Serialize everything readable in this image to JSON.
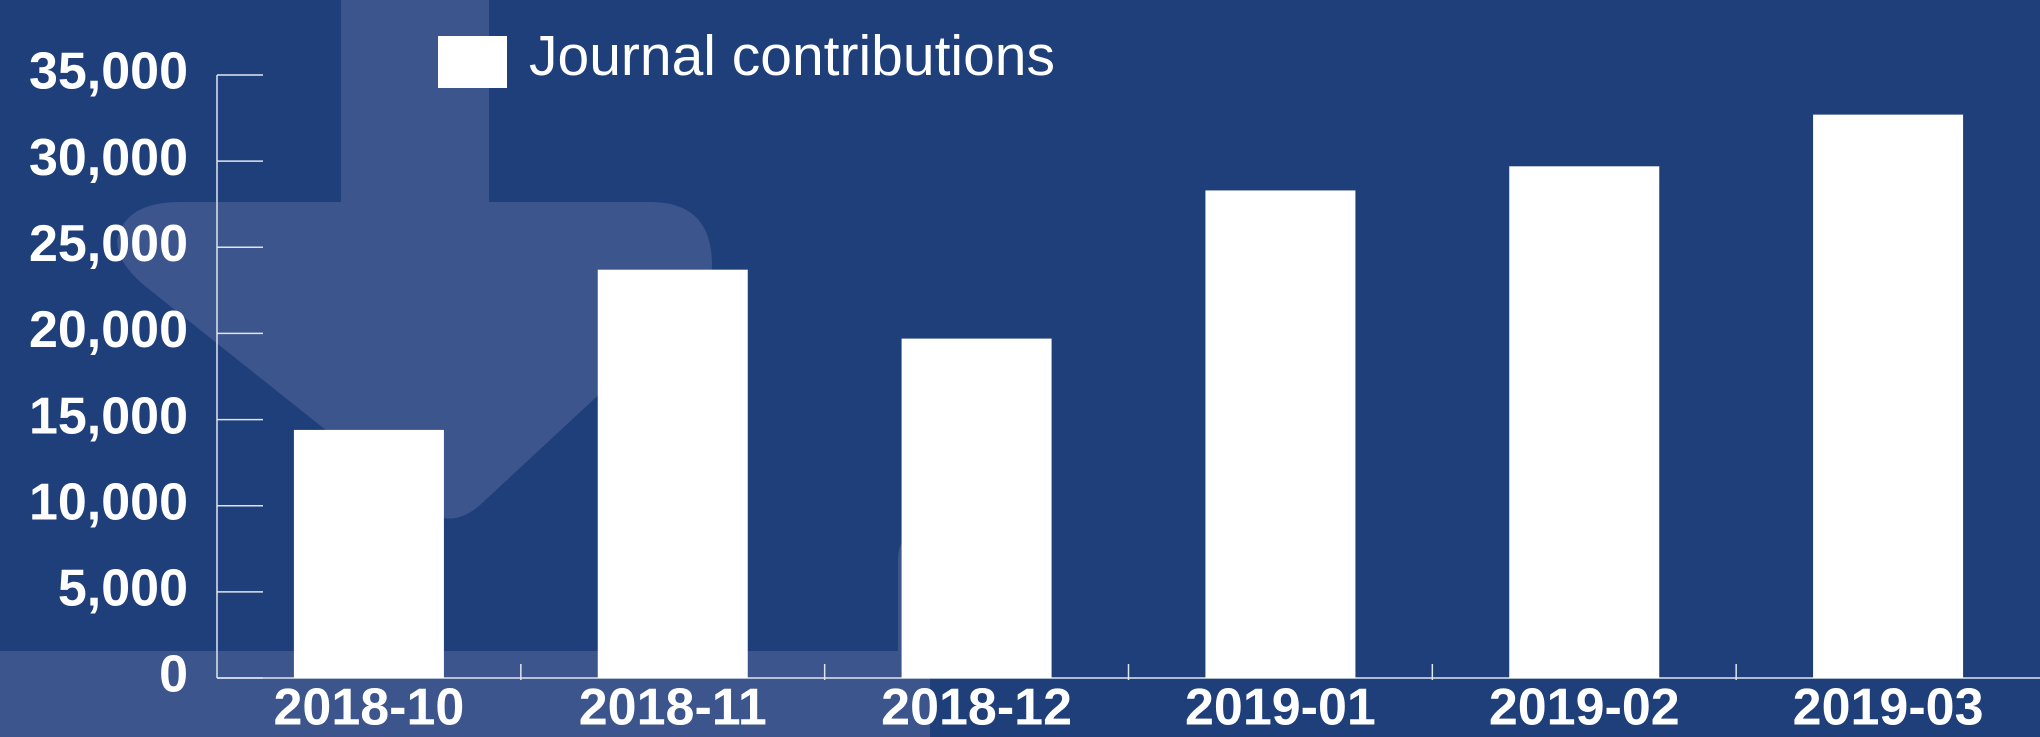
{
  "chart_data": {
    "type": "bar",
    "categories": [
      "2018-10",
      "2018-11",
      "2018-12",
      "2019-01",
      "2019-02",
      "2019-03"
    ],
    "series": [
      {
        "name": "Journal contributions",
        "color": "#ffffff",
        "values": [
          14400,
          23700,
          19700,
          28300,
          29700,
          32700
        ]
      }
    ],
    "ylim": [
      0,
      35000
    ],
    "yticks": [
      0,
      {
        "value": 5000,
        "label": "5,000"
      },
      {
        "value": 10000,
        "label": "10,000"
      },
      {
        "value": 15000,
        "label": "15,000"
      },
      {
        "value": 20000,
        "label": "20,000"
      },
      {
        "value": 25000,
        "label": "25,000"
      },
      {
        "value": 30000,
        "label": "30,000"
      },
      {
        "value": 35000,
        "label": "35,000"
      }
    ],
    "grid": false,
    "legend": "top"
  }
}
